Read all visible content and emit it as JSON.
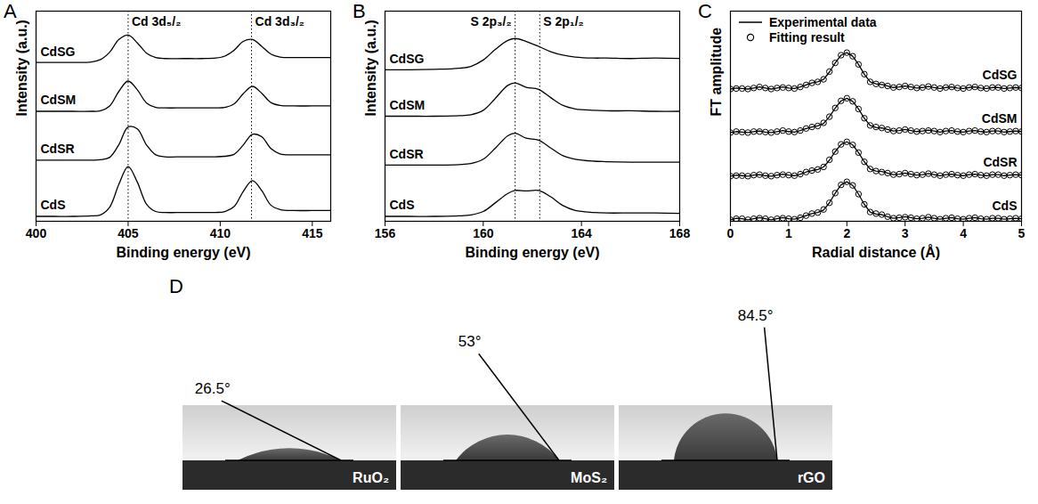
{
  "chart_data": [
    {
      "type": "line",
      "panel": "A",
      "x_label": "Binding energy (eV)",
      "y_label": "Intensity (a.u.)",
      "xlim": [
        400,
        416
      ],
      "xticks": [
        400,
        405,
        410,
        415
      ],
      "ylim": [
        0,
        4.3
      ],
      "tick_labels": "x",
      "annotations": [
        {
          "text": "Cd 3d₅/₂",
          "x": 405.0,
          "line_style": "dotted"
        },
        {
          "text": "Cd 3d₃/₂",
          "x": 411.7,
          "line_style": "dotted"
        }
      ],
      "x": [
        400,
        401,
        402,
        403,
        403.5,
        404,
        404.5,
        405,
        405.5,
        406,
        406.5,
        407,
        408,
        409,
        409.75,
        410.25,
        410.75,
        411.25,
        411.75,
        412.25,
        412.75,
        413.25,
        414,
        415,
        416
      ],
      "series": [
        {
          "name": "CdSG",
          "color": "#000000",
          "values": [
            3.25,
            3.25,
            3.25,
            3.26,
            3.31,
            3.46,
            3.72,
            3.81,
            3.65,
            3.44,
            3.35,
            3.33,
            3.33,
            3.33,
            3.34,
            3.38,
            3.5,
            3.68,
            3.72,
            3.58,
            3.42,
            3.36,
            3.35,
            3.35,
            3.35
          ]
        },
        {
          "name": "CdSM",
          "color": "#000000",
          "values": [
            2.25,
            2.25,
            2.25,
            2.25,
            2.26,
            2.36,
            2.66,
            2.87,
            2.69,
            2.42,
            2.33,
            2.32,
            2.32,
            2.32,
            2.32,
            2.33,
            2.4,
            2.61,
            2.76,
            2.62,
            2.43,
            2.37,
            2.36,
            2.36,
            2.36
          ]
        },
        {
          "name": "CdSR",
          "color": "#000000",
          "values": [
            1.25,
            1.25,
            1.25,
            1.25,
            1.26,
            1.31,
            1.57,
            1.93,
            1.89,
            1.56,
            1.36,
            1.32,
            1.32,
            1.32,
            1.32,
            1.33,
            1.37,
            1.56,
            1.78,
            1.73,
            1.49,
            1.38,
            1.36,
            1.36,
            1.36
          ]
        },
        {
          "name": "CdS",
          "color": "#000000",
          "values": [
            0.1,
            0.1,
            0.1,
            0.11,
            0.13,
            0.29,
            0.76,
            1.12,
            0.8,
            0.35,
            0.2,
            0.18,
            0.18,
            0.18,
            0.18,
            0.2,
            0.3,
            0.61,
            0.83,
            0.63,
            0.33,
            0.24,
            0.22,
            0.22,
            0.22
          ]
        }
      ]
    },
    {
      "type": "line",
      "panel": "B",
      "x_label": "Binding energy (eV)",
      "y_label": "Intensity (a.u.)",
      "xlim": [
        156,
        168
      ],
      "xticks": [
        156,
        160,
        164,
        168
      ],
      "ylim": [
        0,
        4.3
      ],
      "tick_labels": "x",
      "annotations": [
        {
          "text": "S 2p₃/₂",
          "x": 161.3,
          "line_style": "dotted"
        },
        {
          "text": "S 2p₁/₂",
          "x": 162.3,
          "line_style": "dotted"
        }
      ],
      "x": [
        156,
        157,
        158,
        159,
        159.5,
        160,
        160.5,
        161,
        161.3,
        161.75,
        162.25,
        162.75,
        163.25,
        163.75,
        164.5,
        165,
        166,
        167,
        168
      ],
      "series": [
        {
          "name": "CdSG",
          "color": "#000000",
          "values": [
            3.1,
            3.1,
            3.11,
            3.13,
            3.17,
            3.3,
            3.52,
            3.7,
            3.74,
            3.68,
            3.58,
            3.47,
            3.4,
            3.36,
            3.34,
            3.34,
            3.33,
            3.34,
            3.33
          ]
        },
        {
          "name": "CdSM",
          "color": "#000000",
          "values": [
            2.15,
            2.15,
            2.15,
            2.16,
            2.18,
            2.27,
            2.52,
            2.78,
            2.83,
            2.74,
            2.7,
            2.53,
            2.37,
            2.3,
            2.27,
            2.26,
            2.26,
            2.25,
            2.25
          ]
        },
        {
          "name": "CdSR",
          "color": "#000000",
          "values": [
            1.15,
            1.15,
            1.15,
            1.16,
            1.18,
            1.27,
            1.5,
            1.75,
            1.8,
            1.7,
            1.66,
            1.5,
            1.34,
            1.27,
            1.23,
            1.22,
            1.21,
            1.21,
            1.21
          ]
        },
        {
          "name": "CdS",
          "color": "#000000",
          "values": [
            0.1,
            0.1,
            0.1,
            0.11,
            0.13,
            0.2,
            0.38,
            0.57,
            0.63,
            0.62,
            0.63,
            0.5,
            0.32,
            0.22,
            0.18,
            0.17,
            0.17,
            0.17,
            0.16
          ]
        }
      ]
    },
    {
      "type": "line",
      "panel": "C",
      "x_label": "Radial distance (Å)",
      "y_label": "FT amplitude",
      "xlim": [
        0,
        5
      ],
      "xticks": [
        0,
        1,
        2,
        3,
        4,
        5
      ],
      "ylim": [
        0,
        4.1
      ],
      "tick_labels": "x",
      "legend": "top-left",
      "groups": [
        "CdSG",
        "CdSM",
        "CdSR",
        "CdS"
      ],
      "x": [
        0,
        0.1,
        0.2,
        0.3,
        0.4,
        0.5,
        0.6,
        0.7,
        0.8,
        0.9,
        1,
        1.1,
        1.2,
        1.3,
        1.4,
        1.5,
        1.6,
        1.7,
        1.8,
        1.9,
        2,
        2.1,
        2.2,
        2.3,
        2.4,
        2.5,
        2.6,
        2.7,
        2.8,
        2.9,
        3,
        3.1,
        3.2,
        3.3,
        3.4,
        3.5,
        3.6,
        3.7,
        3.8,
        3.9,
        4,
        4.1,
        4.2,
        4.3,
        4.4,
        4.5,
        4.6,
        4.7,
        4.8,
        4.9,
        5
      ],
      "series": [
        {
          "name": "Experimental data",
          "type": "line",
          "line_style": "solid",
          "color": "#000000",
          "values": [
            [
              2.58,
              2.6,
              2.59,
              2.58,
              2.6,
              2.62,
              2.6,
              2.58,
              2.6,
              2.62,
              2.6,
              2.59,
              2.62,
              2.66,
              2.7,
              2.72,
              2.77,
              2.91,
              3.09,
              3.24,
              3.29,
              3.22,
              3.06,
              2.87,
              2.72,
              2.68,
              2.67,
              2.64,
              2.61,
              2.62,
              2.64,
              2.62,
              2.6,
              2.61,
              2.63,
              2.61,
              2.59,
              2.61,
              2.62,
              2.6,
              2.59,
              2.61,
              2.62,
              2.6,
              2.59,
              2.61,
              2.61,
              2.59,
              2.6,
              2.61,
              2.6
            ],
            [
              1.73,
              1.75,
              1.74,
              1.73,
              1.75,
              1.76,
              1.74,
              1.73,
              1.75,
              1.77,
              1.75,
              1.74,
              1.77,
              1.81,
              1.84,
              1.86,
              1.91,
              2.04,
              2.21,
              2.35,
              2.4,
              2.34,
              2.19,
              2.01,
              1.87,
              1.83,
              1.82,
              1.79,
              1.76,
              1.77,
              1.79,
              1.77,
              1.75,
              1.76,
              1.78,
              1.76,
              1.74,
              1.76,
              1.77,
              1.75,
              1.74,
              1.76,
              1.77,
              1.75,
              1.74,
              1.76,
              1.76,
              1.74,
              1.75,
              1.76,
              1.75
            ],
            [
              0.88,
              0.9,
              0.89,
              0.88,
              0.9,
              0.91,
              0.89,
              0.88,
              0.9,
              0.92,
              0.9,
              0.89,
              0.92,
              0.96,
              0.99,
              1.01,
              1.06,
              1.19,
              1.36,
              1.5,
              1.55,
              1.49,
              1.34,
              1.16,
              1.02,
              0.98,
              0.97,
              0.94,
              0.91,
              0.92,
              0.94,
              0.92,
              0.9,
              0.91,
              0.93,
              0.91,
              0.89,
              0.91,
              0.92,
              0.9,
              0.89,
              0.91,
              0.92,
              0.9,
              0.89,
              0.91,
              0.91,
              0.89,
              0.9,
              0.91,
              0.9
            ],
            [
              0.03,
              0.06,
              0.05,
              0.03,
              0.05,
              0.07,
              0.05,
              0.03,
              0.05,
              0.07,
              0.05,
              0.04,
              0.07,
              0.11,
              0.15,
              0.17,
              0.22,
              0.36,
              0.55,
              0.71,
              0.77,
              0.7,
              0.53,
              0.33,
              0.18,
              0.14,
              0.13,
              0.09,
              0.06,
              0.07,
              0.09,
              0.07,
              0.05,
              0.06,
              0.08,
              0.06,
              0.04,
              0.06,
              0.07,
              0.05,
              0.04,
              0.06,
              0.07,
              0.05,
              0.04,
              0.06,
              0.06,
              0.04,
              0.05,
              0.06,
              0.05
            ]
          ]
        },
        {
          "name": "Fitting result",
          "type": "scatter",
          "marker": "circle",
          "color": "#000000",
          "values": [
            [
              2.58,
              2.59,
              2.59,
              2.58,
              2.6,
              2.62,
              2.6,
              2.58,
              2.6,
              2.61,
              2.6,
              2.59,
              2.62,
              2.66,
              2.7,
              2.72,
              2.77,
              2.92,
              3.09,
              3.24,
              3.29,
              3.22,
              3.06,
              2.87,
              2.72,
              2.68,
              2.66,
              2.64,
              2.61,
              2.62,
              2.64,
              2.62,
              2.6,
              2.61,
              2.63,
              2.61,
              2.59,
              2.61,
              2.62,
              2.6,
              2.59,
              2.61,
              2.62,
              2.6,
              2.59,
              2.61,
              2.61,
              2.59,
              2.6,
              2.61,
              2.6
            ],
            [
              1.73,
              1.75,
              1.74,
              1.73,
              1.75,
              1.75,
              1.74,
              1.73,
              1.75,
              1.77,
              1.75,
              1.74,
              1.77,
              1.81,
              1.84,
              1.86,
              1.92,
              2.04,
              2.21,
              2.35,
              2.4,
              2.34,
              2.19,
              2.01,
              1.87,
              1.84,
              1.82,
              1.79,
              1.76,
              1.77,
              1.79,
              1.77,
              1.75,
              1.76,
              1.77,
              1.76,
              1.74,
              1.76,
              1.77,
              1.75,
              1.74,
              1.76,
              1.77,
              1.75,
              1.74,
              1.76,
              1.76,
              1.74,
              1.75,
              1.76,
              1.75
            ],
            [
              0.88,
              0.89,
              0.89,
              0.88,
              0.9,
              0.91,
              0.89,
              0.88,
              0.9,
              0.91,
              0.9,
              0.89,
              0.92,
              0.96,
              0.99,
              1.01,
              1.06,
              1.2,
              1.36,
              1.5,
              1.55,
              1.49,
              1.34,
              1.16,
              1.02,
              0.98,
              0.96,
              0.94,
              0.91,
              0.92,
              0.94,
              0.92,
              0.9,
              0.91,
              0.93,
              0.91,
              0.89,
              0.91,
              0.92,
              0.9,
              0.89,
              0.91,
              0.92,
              0.9,
              0.89,
              0.91,
              0.91,
              0.89,
              0.9,
              0.91,
              0.9
            ],
            [
              0.03,
              0.05,
              0.05,
              0.03,
              0.05,
              0.06,
              0.05,
              0.03,
              0.05,
              0.06,
              0.05,
              0.04,
              0.07,
              0.11,
              0.15,
              0.17,
              0.23,
              0.36,
              0.55,
              0.71,
              0.77,
              0.7,
              0.53,
              0.33,
              0.18,
              0.15,
              0.13,
              0.09,
              0.06,
              0.07,
              0.08,
              0.07,
              0.05,
              0.06,
              0.08,
              0.06,
              0.04,
              0.06,
              0.07,
              0.05,
              0.04,
              0.06,
              0.07,
              0.05,
              0.04,
              0.06,
              0.06,
              0.04,
              0.05,
              0.06,
              0.05
            ]
          ]
        }
      ]
    },
    {
      "type": "contact_angle",
      "panel": "D",
      "categories": [
        "RuO₂",
        "MoS₂",
        "rGO"
      ],
      "values": [
        26.5,
        53,
        84.5
      ],
      "value_labels": [
        "26.5°",
        "53°",
        "84.5°"
      ]
    }
  ]
}
